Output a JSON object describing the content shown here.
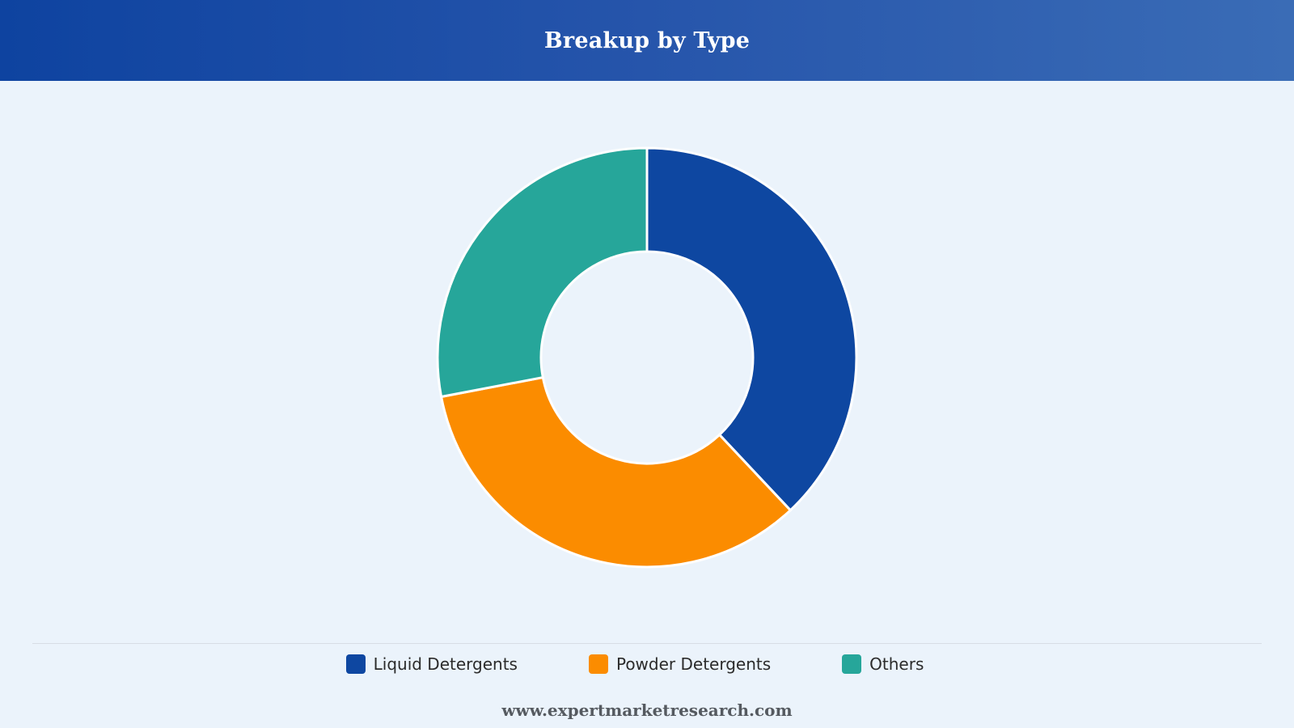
{
  "header": {
    "title": "Breakup by Type"
  },
  "chart_data": {
    "type": "pie",
    "variant": "donut",
    "title": "Breakup by Type",
    "categories": [
      "Liquid Detergents",
      "Powder Detergents",
      "Others"
    ],
    "values": [
      38,
      34,
      28
    ],
    "colors": [
      "#0e47a1",
      "#fb8c00",
      "#26a69a"
    ],
    "legend_position": "bottom"
  },
  "footer": {
    "source": "www.expertmarketresearch.com"
  }
}
